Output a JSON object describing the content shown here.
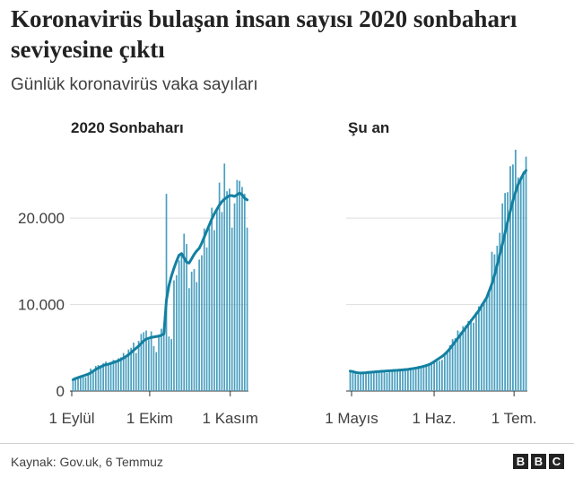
{
  "header": {
    "title": "Koronavirüs bulaşan insan sayısı 2020 sonbaharı seviyesine çıktı",
    "subtitle": "Günlük koronavirüs vaka sayıları"
  },
  "footer": {
    "source": "Kaynak: Gov.uk, 6 Temmuz",
    "logo_letters": [
      "B",
      "B",
      "C"
    ]
  },
  "colors": {
    "bars": "#4a9fbf",
    "line": "#1380a1",
    "grid": "#dddddd",
    "axis": "#333333"
  },
  "chart_data": [
    {
      "type": "bar",
      "title": "2020 Sonbaharı",
      "x_range": [
        "2020-09-01",
        "2020-11-08"
      ],
      "x_ticks": [
        {
          "date": "2020-09-01",
          "label": "1 Eylül"
        },
        {
          "date": "2020-10-01",
          "label": "1 Ekim"
        },
        {
          "date": "2020-11-01",
          "label": "1 Kasım"
        }
      ],
      "y_ticks": [
        {
          "value": 0,
          "label": "0"
        },
        {
          "value": 10000,
          "label": "10.000"
        },
        {
          "value": 20000,
          "label": "20.000"
        }
      ],
      "ylim": [
        0,
        28000
      ],
      "grid": true,
      "series": [
        {
          "kind": "bar",
          "description": "daily cases",
          "values": [
            1300,
            1500,
            1600,
            1700,
            1800,
            1600,
            1900,
            2600,
            2400,
            2900,
            3000,
            2700,
            3200,
            3400,
            3100,
            3300,
            3600,
            3400,
            3800,
            3900,
            4400,
            4000,
            4800,
            5000,
            5600,
            4400,
            5800,
            6600,
            6800,
            7000,
            5900,
            6900,
            5200,
            4500,
            6500,
            7200,
            7000,
            22800,
            6300,
            6000,
            12800,
            13400,
            15100,
            15900,
            18200,
            17000,
            11900,
            13800,
            14100,
            12600,
            15200,
            15700,
            18800,
            16600,
            18800,
            21200,
            18600,
            21100,
            24100,
            20700,
            26300,
            23100,
            23400,
            18900,
            21700,
            24400,
            24300,
            23600,
            22800,
            18900
          ]
        },
        {
          "kind": "line",
          "description": "7-day average",
          "values": [
            1300,
            1450,
            1550,
            1650,
            1750,
            1850,
            1950,
            2100,
            2300,
            2500,
            2650,
            2800,
            2950,
            3050,
            3100,
            3200,
            3300,
            3400,
            3500,
            3650,
            3800,
            4000,
            4200,
            4450,
            4700,
            4950,
            5200,
            5500,
            5800,
            6000,
            6100,
            6200,
            6250,
            6300,
            6350,
            6450,
            6600,
            10500,
            12200,
            13300,
            14200,
            15000,
            15700,
            15900,
            15400,
            14900,
            14800,
            15300,
            15800,
            16200,
            16500,
            17100,
            17800,
            18500,
            19200,
            19900,
            20500,
            21000,
            21500,
            21900,
            22200,
            22400,
            22600,
            22600,
            22500,
            22700,
            22900,
            22700,
            22300,
            22100
          ]
        }
      ]
    },
    {
      "type": "bar",
      "title": "Şu an",
      "x_range": [
        "2021-04-30",
        "2021-07-06"
      ],
      "x_ticks": [
        {
          "date": "2021-05-01",
          "label": "1 Mayıs"
        },
        {
          "date": "2021-06-01",
          "label": "1 Haz."
        },
        {
          "date": "2021-07-01",
          "label": "1 Tem."
        }
      ],
      "y_ticks": [
        {
          "value": 0,
          "label": "0"
        },
        {
          "value": 10000,
          "label": "10.000"
        },
        {
          "value": 20000,
          "label": "20.000"
        }
      ],
      "ylim": [
        0,
        28000
      ],
      "grid": true,
      "series": [
        {
          "kind": "bar",
          "description": "daily cases",
          "values": [
            2300,
            2100,
            2000,
            1900,
            2000,
            2100,
            2000,
            2200,
            2200,
            2300,
            2100,
            2300,
            2300,
            2400,
            2100,
            2300,
            2400,
            2300,
            2500,
            2500,
            2400,
            2600,
            2600,
            2500,
            2700,
            2800,
            2900,
            2900,
            3000,
            2800,
            3100,
            3300,
            3400,
            3400,
            3500,
            3600,
            4400,
            4700,
            5300,
            6000,
            6100,
            7000,
            6800,
            7500,
            7600,
            8100,
            8300,
            7900,
            9100,
            9800,
            10100,
            10300,
            11000,
            11600,
            16100,
            15800,
            16800,
            18300,
            21700,
            22900,
            23000,
            26000,
            26200,
            27900,
            24700,
            24800,
            25400,
            27100
          ]
        },
        {
          "kind": "line",
          "description": "7-day average",
          "values": [
            2300,
            2250,
            2150,
            2100,
            2080,
            2100,
            2120,
            2150,
            2180,
            2200,
            2230,
            2250,
            2280,
            2300,
            2320,
            2340,
            2360,
            2380,
            2400,
            2430,
            2450,
            2480,
            2500,
            2550,
            2600,
            2650,
            2700,
            2780,
            2860,
            2950,
            3050,
            3200,
            3400,
            3600,
            3800,
            4000,
            4250,
            4550,
            4900,
            5300,
            5700,
            6100,
            6500,
            6900,
            7300,
            7700,
            8100,
            8500,
            8900,
            9300,
            9800,
            10300,
            10800,
            11600,
            12400,
            13400,
            14600,
            15800,
            17000,
            18300,
            19600,
            20800,
            22000,
            23000,
            23900,
            24500,
            25100,
            25500
          ]
        }
      ]
    }
  ]
}
